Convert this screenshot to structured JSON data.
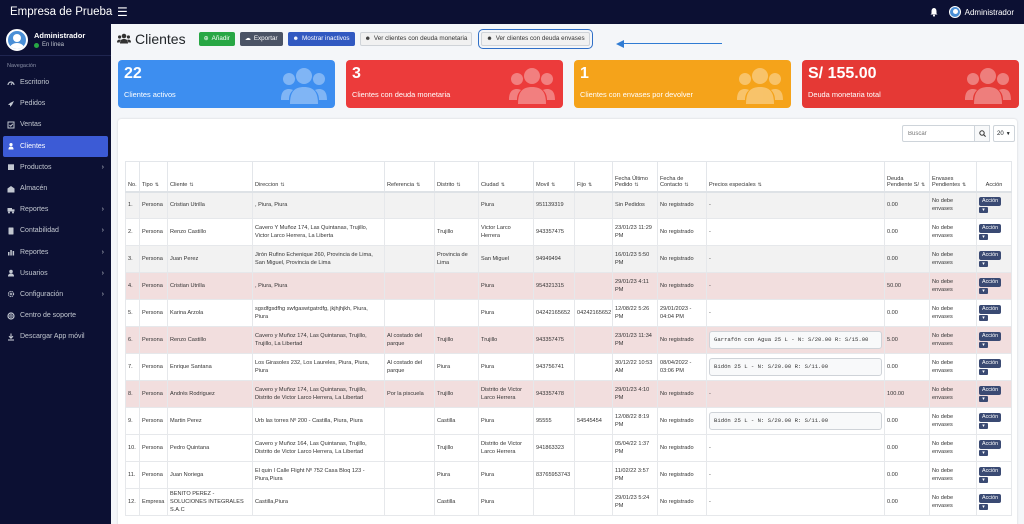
{
  "app": {
    "brand": "Empresa de Prueba",
    "menu_icon": "hamburger-icon"
  },
  "topbar": {
    "user": "Administrador"
  },
  "sidebar": {
    "user_name": "Administrador",
    "user_status": "En línea",
    "nav_header": "Navegación",
    "items": [
      {
        "label": "Escritorio",
        "icon": "gauge-icon",
        "chevron": false
      },
      {
        "label": "Pedidos",
        "icon": "rocket-icon",
        "chevron": false
      },
      {
        "label": "Ventas",
        "icon": "check-square-icon",
        "chevron": false
      },
      {
        "label": "Clientes",
        "icon": "users-icon",
        "chevron": false,
        "active": true
      },
      {
        "label": "Productos",
        "icon": "box-icon",
        "chevron": true
      },
      {
        "label": "Almacén",
        "icon": "warehouse-icon",
        "chevron": false
      },
      {
        "label": "Reportes",
        "icon": "truck-icon",
        "chevron": true
      },
      {
        "label": "Contabilidad",
        "icon": "calculator-icon",
        "chevron": true
      },
      {
        "label": "Reportes",
        "icon": "chart-icon",
        "chevron": true
      },
      {
        "label": "Usuarios",
        "icon": "user-icon",
        "chevron": true
      },
      {
        "label": "Configuración",
        "icon": "cogs-icon",
        "chevron": true
      },
      {
        "label": "Centro de soporte",
        "icon": "lifebuoy-icon",
        "chevron": false
      },
      {
        "label": "Descargar App móvil",
        "icon": "download-icon",
        "chevron": false
      }
    ]
  },
  "header": {
    "title": "Clientes",
    "buttons": {
      "add": "Añadir",
      "export": "Exportar",
      "show_inactive": "Mostrar inactivos",
      "debt_money": "Ver clientes con deuda monetaria",
      "debt_containers": "Ver clientes con deuda envases"
    }
  },
  "stats": [
    {
      "value": "22",
      "label": "Clientes activos",
      "color": "#3d8ef0"
    },
    {
      "value": "3",
      "label": "Clientes con deuda monetaria",
      "color": "#ec3b3b"
    },
    {
      "value": "1",
      "label": "Clientes con envases por devolver",
      "color": "#f5a31a"
    },
    {
      "value": "S/ 155.00",
      "label": "Deuda monetaria total",
      "color": "#e53935"
    }
  ],
  "table": {
    "search_placeholder": "Buscar",
    "page_size": "20",
    "columns": [
      "No.",
      "Tipo",
      "Cliente",
      "Direccion",
      "Referencia",
      "Distrito",
      "Ciudad",
      "Movil",
      "Fijo",
      "Fecha Último Pedido",
      "Fecha de Contacto",
      "Precios especiales",
      "Deuda Pendiente S/",
      "Envases Pendientes",
      "Acción"
    ],
    "action_label": "Acción",
    "rows": [
      {
        "no": "1.",
        "tipo": "Persona",
        "cliente": "Cristian Utrilla",
        "direccion": ", Piura, Piura",
        "referencia": "",
        "distrito": "",
        "ciudad": "Piura",
        "movil": "951139319",
        "fijo": "",
        "fecha_pedido": "Sin Pedidos",
        "fecha_contacto": "No registrado",
        "precios": "-",
        "deuda": "0.00",
        "envases": "No debe envases",
        "style": "stripe"
      },
      {
        "no": "2.",
        "tipo": "Persona",
        "cliente": "Renzo Castillo",
        "direccion": "Cavero Y Muñoz 174, Las Quintanas, Trujillo, Victor Larco Herrera, La Liberta",
        "referencia": "",
        "distrito": "Trujillo",
        "ciudad": "Victor Larco Herrera",
        "movil": "943357475",
        "fijo": "",
        "fecha_pedido": "23/01/23 11:29 PM",
        "fecha_contacto": "No registrado",
        "precios": "-",
        "deuda": "0.00",
        "envases": "No debe envases",
        "style": ""
      },
      {
        "no": "3.",
        "tipo": "Persona",
        "cliente": "Juan Perez",
        "direccion": "Jirón Rufino Echenique 260, Provincia de Lima, San Miguel, Provincia de Lima",
        "referencia": "",
        "distrito": "Provincia de Lima",
        "ciudad": "San Miguel",
        "movil": "94949494",
        "fijo": "",
        "fecha_pedido": "16/01/23 5:50 PM",
        "fecha_contacto": "No registrado",
        "precios": "-",
        "deuda": "0.00",
        "envases": "No debe envases",
        "style": "stripe"
      },
      {
        "no": "4.",
        "tipo": "Persona",
        "cliente": "Cristian Utrilla",
        "direccion": ", Piura, Piura",
        "referencia": "",
        "distrito": "",
        "ciudad": "Piura",
        "movil": "954321315",
        "fijo": "",
        "fecha_pedido": "29/01/23 4:11 PM",
        "fecha_contacto": "No registrado",
        "precios": "-",
        "deuda": "50.00",
        "envases": "No debe envases",
        "style": "pink"
      },
      {
        "no": "5.",
        "tipo": "Persona",
        "cliente": "Karina Arzola",
        "direccion": "sgsdfgsdfhg swfgaswtgatrdfg, jkjhjhjkh, Piura, Piura",
        "referencia": "",
        "distrito": "",
        "ciudad": "Piura",
        "movil": "04242165652",
        "fijo": "04242165652",
        "fecha_pedido": "12/08/22 5:26 PM",
        "fecha_contacto": "29/01/2023 - 04:04 PM",
        "precios": "-",
        "deuda": "0.00",
        "envases": "No debe envases",
        "style": ""
      },
      {
        "no": "6.",
        "tipo": "Persona",
        "cliente": "Renzo Castillo",
        "direccion": "Cavero y Muñoz 174, Las Quintanas, Trujillo, Trujillo, La Libertad",
        "referencia": "Al costado del parque",
        "distrito": "Trujillo",
        "ciudad": "Trujillo",
        "movil": "943357475",
        "fijo": "",
        "fecha_pedido": "23/01/23 11:34 PM",
        "fecha_contacto": "No registrado",
        "precios": "Garrafón con Agua 25 L -  N: S/20.00 R: S/15.00",
        "deuda": "5.00",
        "envases": "No debe envases",
        "style": "pink"
      },
      {
        "no": "7.",
        "tipo": "Persona",
        "cliente": "Enrique Santana",
        "direccion": "Los Girasoles 232, Los Laureles, Piura, Piura, Piura",
        "referencia": "Al costado del parque",
        "distrito": "Piura",
        "ciudad": "Piura",
        "movil": "943756741",
        "fijo": "",
        "fecha_pedido": "30/12/22 10:53 AM",
        "fecha_contacto": "08/04/2022 - 03:06 PM",
        "precios": "Bidón 25 L -  N: S/20.00 R: S/11.00",
        "deuda": "0.00",
        "envases": "No debe envases",
        "style": ""
      },
      {
        "no": "8.",
        "tipo": "Persona",
        "cliente": "Andrés Rodriguez",
        "direccion": "Cavero y Muñoz 174, Las Quintanas, Trujillo, Distrito de Victor Larco Herrera, La Libertad",
        "referencia": "Por la piscuela",
        "distrito": "Trujillo",
        "ciudad": "Distrito de Victor Larco Herrera",
        "movil": "943357478",
        "fijo": "",
        "fecha_pedido": "29/01/23 4:10 PM",
        "fecha_contacto": "No registrado",
        "precios": "-",
        "deuda": "100.00",
        "envases": "No debe envases",
        "style": "pink"
      },
      {
        "no": "9.",
        "tipo": "Persona",
        "cliente": "Martin Perez",
        "direccion": "Urb las torres Nº 200 - Castilla, Piura, Piura",
        "referencia": "",
        "distrito": "Castilla",
        "ciudad": "Piura",
        "movil": "95555",
        "fijo": "54545454",
        "fecha_pedido": "12/08/22 8:19 PM",
        "fecha_contacto": "No registrado",
        "precios": "Bidón 25 L -  N: S/20.00 R: S/11.00",
        "deuda": "0.00",
        "envases": "No debe envases",
        "style": ""
      },
      {
        "no": "10.",
        "tipo": "Persona",
        "cliente": "Pedro Quintana",
        "direccion": "Cavero y Muñoz 164, Las Quintanas, Trujillo, Distrito de Victor Larco Herrera, La Libertad",
        "referencia": "",
        "distrito": "Trujillo",
        "ciudad": "Distrito de Victor Larco Herrera",
        "movil": "941863323",
        "fijo": "",
        "fecha_pedido": "05/04/22 1:37 PM",
        "fecha_contacto": "No registrado",
        "precios": "-",
        "deuda": "0.00",
        "envases": "No debe envases",
        "style": ""
      },
      {
        "no": "11.",
        "tipo": "Persona",
        "cliente": "Juan Noriega",
        "direccion": "El quin l Calle Flight Nº 752 Casa Bloq 123 - Piura,Piura",
        "referencia": "",
        "distrito": "Piura",
        "ciudad": "Piura",
        "movil": "83765953743",
        "fijo": "",
        "fecha_pedido": "11/02/22 3:57 PM",
        "fecha_contacto": "No registrado",
        "precios": "-",
        "deuda": "0.00",
        "envases": "No debe envases",
        "style": ""
      },
      {
        "no": "12.",
        "tipo": "Empresa",
        "cliente": "BENITO PEREZ - SOLUCIONES INTEGRALES S.A.C",
        "direccion": "Castilla,Piura",
        "referencia": "",
        "distrito": "Castilla",
        "ciudad": "Piura",
        "movil": "",
        "fijo": "",
        "fecha_pedido": "29/01/23 5:24 PM",
        "fecha_contacto": "No registrado",
        "precios": "-",
        "deuda": "0.00",
        "envases": "No debe envases",
        "style": ""
      }
    ]
  }
}
